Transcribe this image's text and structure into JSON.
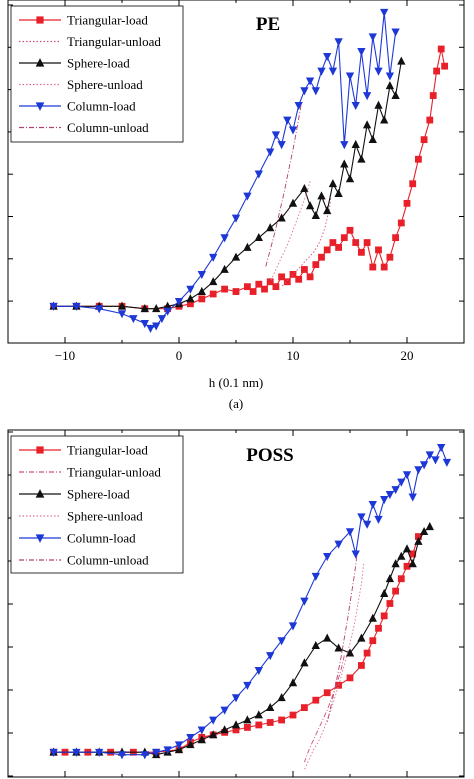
{
  "figure": {
    "caption_a": "(a)"
  },
  "chart_data": [
    {
      "type": "line",
      "title": "PE",
      "xlabel": "h (0.1 nm)",
      "ylabel": "",
      "xlim": [
        -15,
        25
      ],
      "ylim": [
        -1.5,
        12.5
      ],
      "xticks": [
        -10,
        0,
        10,
        20
      ],
      "xtick_labels": [
        "−10",
        "0",
        "10",
        "20"
      ],
      "legend_position": "top-left",
      "series": [
        {
          "name": "Triangular-load",
          "color": "#e8202a",
          "marker": "square",
          "filled": true,
          "style": "solid",
          "x": [
            -11,
            -9,
            -7,
            -5,
            -3,
            -1,
            0,
            1,
            2,
            3,
            4,
            5,
            6,
            6.5,
            7,
            7.5,
            8,
            8.5,
            9,
            9.5,
            10,
            10.5,
            11,
            11.5,
            12,
            12.5,
            13,
            13.5,
            14,
            14.5,
            15,
            15.5,
            16,
            16.5,
            17,
            17.5,
            18,
            18.5,
            19,
            19.5,
            20,
            20.5,
            21,
            21.5,
            22,
            22.3,
            22.6,
            23,
            23.3
          ],
          "y": [
            0,
            0,
            0,
            0,
            -0.1,
            -0.1,
            0,
            0.1,
            0.3,
            0.5,
            0.7,
            0.6,
            0.8,
            0.6,
            0.9,
            0.7,
            1.0,
            0.8,
            1.2,
            1.0,
            1.3,
            1.1,
            1.5,
            1.2,
            1.7,
            2.0,
            2.3,
            2.6,
            2.4,
            2.8,
            3.1,
            2.6,
            2.2,
            2.6,
            1.6,
            2.3,
            1.6,
            2.0,
            2.8,
            3.4,
            4.2,
            5.0,
            6.0,
            6.8,
            7.6,
            8.6,
            9.6,
            10.5,
            9.8
          ]
        },
        {
          "name": "Triangular-unload",
          "color": "#d0507a",
          "marker": "none",
          "filled": false,
          "style": "dotted",
          "x": [
            13.3,
            13.2,
            13.0,
            12.8,
            12.5,
            12.2,
            11.8,
            11.4,
            11.0,
            10.6,
            10.2,
            9.8,
            9.4,
            9.0
          ],
          "y": [
            4.4,
            4.0,
            3.6,
            3.2,
            2.8,
            2.5,
            2.2,
            2.0,
            1.8,
            1.6,
            1.4,
            1.2,
            1.0,
            0.8
          ]
        },
        {
          "name": "Sphere-load",
          "color": "#111111",
          "marker": "triangle-up",
          "filled": true,
          "style": "solid",
          "x": [
            -11,
            -9,
            -7,
            -5,
            -3,
            -2,
            -1,
            0,
            1,
            2,
            3,
            4,
            5,
            6,
            7,
            8,
            9,
            10,
            11,
            11.5,
            12,
            12.5,
            13,
            13.5,
            14,
            14.5,
            15,
            15.5,
            16,
            16.5,
            17,
            17.5,
            18,
            18.5,
            19,
            19.5
          ],
          "y": [
            0,
            0,
            0,
            0,
            -0.1,
            -0.1,
            0,
            0.1,
            0.3,
            0.6,
            1.0,
            1.5,
            2.0,
            2.4,
            2.8,
            3.2,
            3.6,
            4.2,
            4.8,
            4.1,
            3.7,
            4.5,
            3.9,
            5.0,
            4.6,
            5.8,
            5.2,
            6.6,
            6.0,
            7.4,
            6.8,
            8.2,
            7.6,
            9.0,
            8.6,
            10.0
          ]
        },
        {
          "name": "Sphere-unload",
          "color": "#e07090",
          "marker": "none",
          "filled": false,
          "style": "dotted",
          "x": [
            11.5,
            11.2,
            10.8,
            10.4,
            10.0,
            9.6,
            9.2,
            8.8,
            8.4,
            8.0
          ],
          "y": [
            5.1,
            4.6,
            4.1,
            3.6,
            3.1,
            2.6,
            2.2,
            1.8,
            1.4,
            1.0
          ]
        },
        {
          "name": "Column-load",
          "color": "#1e38d8",
          "marker": "triangle-down",
          "filled": true,
          "style": "solid",
          "x": [
            -11,
            -9,
            -7,
            -5,
            -4,
            -3,
            -2.5,
            -2,
            -1.5,
            -1,
            0,
            1,
            2,
            3,
            4,
            5,
            6,
            7,
            8,
            8.5,
            9,
            9.5,
            10,
            10.5,
            11,
            11.5,
            12,
            12.5,
            13,
            13.5,
            14,
            14.5,
            15,
            15.5,
            16,
            16.5,
            17,
            17.5,
            18,
            18.5,
            19
          ],
          "y": [
            0,
            0,
            -0.1,
            -0.3,
            -0.5,
            -0.7,
            -0.9,
            -0.8,
            -0.5,
            -0.2,
            0.2,
            0.7,
            1.3,
            2.0,
            2.8,
            3.6,
            4.5,
            5.4,
            6.3,
            7.0,
            6.6,
            7.6,
            7.2,
            8.2,
            8.8,
            9.2,
            8.8,
            9.6,
            10.2,
            9.6,
            10.8,
            6.6,
            9.4,
            8.2,
            10.4,
            8.6,
            11.0,
            9.6,
            12.0,
            9.4,
            11.2
          ]
        },
        {
          "name": "Column-unload",
          "color": "#b04070",
          "marker": "none",
          "filled": false,
          "style": "dashdot",
          "x": [
            10.7,
            10.4,
            10.0,
            9.6,
            9.2,
            8.8,
            8.4,
            8.0,
            7.6
          ],
          "y": [
            8.2,
            7.4,
            6.4,
            5.5,
            4.6,
            3.8,
            3.0,
            2.3,
            1.6
          ]
        }
      ]
    },
    {
      "type": "line",
      "title": "POSS",
      "xlabel": "",
      "ylabel": "",
      "xlim": [
        -15,
        25
      ],
      "ylim": [
        -1,
        13
      ],
      "legend_position": "top-left",
      "series": [
        {
          "name": "Triangular-load",
          "color": "#e8202a",
          "marker": "square",
          "filled": true,
          "style": "solid",
          "x": [
            -11,
            -10,
            -8,
            -6,
            -4,
            -2,
            0,
            1,
            2,
            3,
            4,
            5,
            6,
            7,
            8,
            9,
            10,
            11,
            12,
            13,
            14,
            15,
            16,
            16.5,
            17,
            17.5,
            18,
            18.5,
            19,
            19.5,
            20,
            20.5,
            21
          ],
          "y": [
            0,
            0,
            0,
            0,
            0,
            0,
            0.1,
            0.4,
            0.6,
            0.7,
            0.8,
            0.9,
            1.0,
            1.1,
            1.2,
            1.3,
            1.5,
            1.8,
            2.1,
            2.4,
            2.7,
            3.0,
            3.5,
            4.0,
            4.5,
            5.0,
            5.5,
            6.0,
            6.5,
            7.0,
            7.5,
            8.0,
            8.7
          ]
        },
        {
          "name": "Triangular-unload",
          "color": "#d0507a",
          "marker": "none",
          "filled": false,
          "style": "dashdot",
          "x": [
            14.5,
            14.2,
            13.8,
            13.4,
            13.0,
            12.6,
            12.2,
            11.8,
            11.4,
            11.0
          ],
          "y": [
            3.9,
            3.3,
            2.7,
            2.2,
            1.7,
            1.3,
            0.9,
            0.5,
            0.1,
            -0.4
          ]
        },
        {
          "name": "Sphere-load",
          "color": "#111111",
          "marker": "triangle-up",
          "filled": true,
          "style": "solid",
          "x": [
            -11,
            -9,
            -7,
            -5,
            -3,
            -2,
            -1,
            0,
            1,
            2,
            3,
            4,
            5,
            6,
            7,
            8,
            9,
            10,
            11,
            12,
            13,
            14,
            15,
            16,
            17,
            18,
            18.5,
            19,
            19.5,
            20,
            20.5,
            21,
            21.5,
            22
          ],
          "y": [
            0,
            0,
            0,
            0,
            0,
            -0.1,
            0,
            0.1,
            0.3,
            0.5,
            0.7,
            0.9,
            1.1,
            1.3,
            1.5,
            1.8,
            2.2,
            2.8,
            3.6,
            4.3,
            4.6,
            4.2,
            4.0,
            4.6,
            5.4,
            6.4,
            7.0,
            7.6,
            7.9,
            8.2,
            7.6,
            8.5,
            8.9,
            9.1
          ]
        },
        {
          "name": "Sphere-unload",
          "color": "#e07090",
          "marker": "none",
          "filled": false,
          "style": "dotted",
          "x": [
            16.2,
            16.0,
            15.7,
            15.4,
            15.0,
            14.6,
            14.2,
            13.8,
            13.4,
            13.0,
            12.6,
            12.2,
            11.8,
            11.4,
            11.0
          ],
          "y": [
            7.6,
            6.8,
            6.0,
            5.2,
            4.4,
            3.7,
            3.0,
            2.4,
            1.8,
            1.3,
            0.8,
            0.4,
            0.1,
            -0.3,
            -0.7
          ]
        },
        {
          "name": "Column-load",
          "color": "#1e38d8",
          "marker": "triangle-down",
          "filled": true,
          "style": "solid",
          "x": [
            -11,
            -9,
            -7,
            -5,
            -3,
            -2,
            -1,
            0,
            1,
            2,
            3,
            4,
            5,
            6,
            7,
            8,
            9,
            10,
            11,
            12,
            13,
            14,
            15,
            15.5,
            16,
            16.5,
            17,
            17.5,
            18,
            18.5,
            19,
            19.5,
            20,
            20.5,
            21,
            21.5,
            22,
            22.5,
            23,
            23.5
          ],
          "y": [
            0,
            0,
            0,
            -0.1,
            -0.1,
            0,
            0.1,
            0.3,
            0.6,
            0.9,
            1.3,
            1.7,
            2.2,
            2.7,
            3.3,
            3.9,
            4.5,
            5.1,
            6.1,
            7.1,
            7.9,
            8.4,
            8.9,
            8.0,
            9.5,
            9.2,
            10.0,
            9.4,
            10.2,
            10.4,
            10.6,
            10.9,
            11.2,
            10.3,
            11.4,
            11.6,
            12.0,
            11.8,
            12.3,
            11.7
          ]
        },
        {
          "name": "Column-unload",
          "color": "#b04070",
          "marker": "none",
          "filled": false,
          "style": "dashdot",
          "x": [
            15.6,
            15.4,
            15.1,
            14.8,
            14.5,
            14.2,
            13.9,
            13.6,
            13.3,
            13.0
          ],
          "y": [
            7.9,
            7.2,
            6.3,
            5.4,
            4.6,
            3.8,
            3.1,
            2.4,
            1.8,
            1.2
          ]
        }
      ]
    }
  ]
}
